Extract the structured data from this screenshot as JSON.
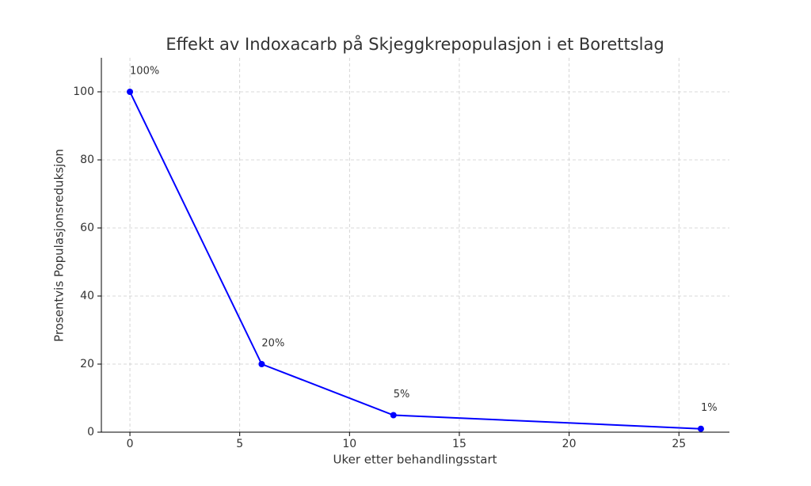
{
  "chart_data": {
    "type": "line",
    "title": "Effekt av Indoxacarb på Skjeggkrepopulasjon i et Borettslag",
    "x_label": "Uker etter behandlingsstart",
    "y_label": "Prosentvis Populasjonsreduksjon",
    "x": [
      0,
      6,
      12,
      26
    ],
    "series": [
      {
        "name": "Populasjonsreduksjon",
        "color": "#0000ff",
        "values": [
          100,
          20,
          5,
          1
        ],
        "value_labels": [
          "100%",
          "20%",
          "5%",
          "1%"
        ]
      }
    ],
    "xlim": [
      -1.3,
      27.3
    ],
    "xticks": [
      0,
      5,
      10,
      15,
      20,
      25
    ],
    "ylim": [
      0,
      110
    ],
    "yticks": [
      0,
      20,
      40,
      60,
      80,
      100
    ],
    "grid": true
  }
}
